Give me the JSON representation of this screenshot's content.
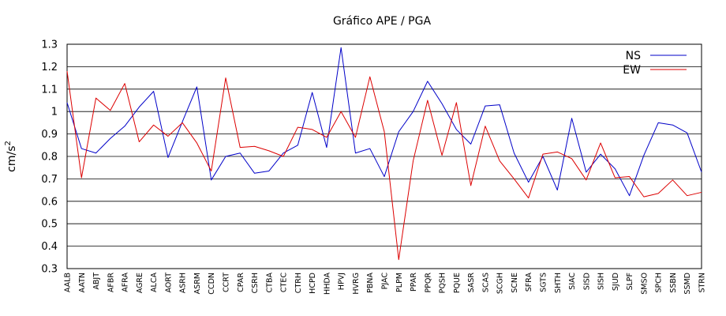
{
  "chart_data": {
    "type": "line",
    "title": "Gráfico  APE / PGA",
    "ylabel_base": "cm/s",
    "ylabel_sup": "2",
    "xlabel": "",
    "ylim": [
      0.3,
      1.3
    ],
    "yticks": [
      "0.3",
      "0.4",
      "0.5",
      "0.6",
      "0.7",
      "0.8",
      "0.9",
      "1",
      "1.1",
      "1.2",
      "1.3"
    ],
    "grid": true,
    "legend_position": "top-right",
    "categories": [
      "AALB",
      "AATN",
      "ABJT",
      "AFBR",
      "AFRA",
      "AGRE",
      "ALCA",
      "AORT",
      "ASRH",
      "ASRM",
      "CCDN",
      "CCRT",
      "CPAR",
      "CSRH",
      "CTBA",
      "CTEC",
      "CTRH",
      "HCPD",
      "HHDA",
      "HPVJ",
      "HVRG",
      "PBNA",
      "PJAC",
      "PLPM",
      "PPAR",
      "PPQR",
      "PQSH",
      "PQUE",
      "SASR",
      "SCAS",
      "SCGH",
      "SCNE",
      "SFRA",
      "SGTS",
      "SHTH",
      "SIAC",
      "SISD",
      "SISH",
      "SJUD",
      "SLPF",
      "SMSO",
      "SPCH",
      "SSBN",
      "SSMD",
      "STRN"
    ],
    "series": [
      {
        "name": "NS",
        "color": "#0000c8",
        "values": [
          1.04,
          0.835,
          0.815,
          0.88,
          0.935,
          1.02,
          1.09,
          0.795,
          0.955,
          1.11,
          0.695,
          0.8,
          0.815,
          0.725,
          0.735,
          0.815,
          0.85,
          1.085,
          0.84,
          1.285,
          0.815,
          0.835,
          0.71,
          0.91,
          1.0,
          1.135,
          1.035,
          0.92,
          0.855,
          1.025,
          1.03,
          0.815,
          0.685,
          0.8,
          0.65,
          0.97,
          0.73,
          0.81,
          0.745,
          0.625,
          0.805,
          0.95,
          0.94,
          0.905,
          0.73
        ]
      },
      {
        "name": "EW",
        "color": "#dc0000",
        "values": [
          1.18,
          0.705,
          1.06,
          1.005,
          1.125,
          0.865,
          0.94,
          0.89,
          0.95,
          0.86,
          0.735,
          1.15,
          0.84,
          0.845,
          0.825,
          0.8,
          0.93,
          0.92,
          0.885,
          1.0,
          0.885,
          1.155,
          0.91,
          0.34,
          0.78,
          1.05,
          0.805,
          1.04,
          0.67,
          0.935,
          0.78,
          0.7,
          0.615,
          0.81,
          0.82,
          0.79,
          0.695,
          0.86,
          0.705,
          0.71,
          0.62,
          0.635,
          0.695,
          0.625,
          0.64
        ]
      }
    ]
  }
}
